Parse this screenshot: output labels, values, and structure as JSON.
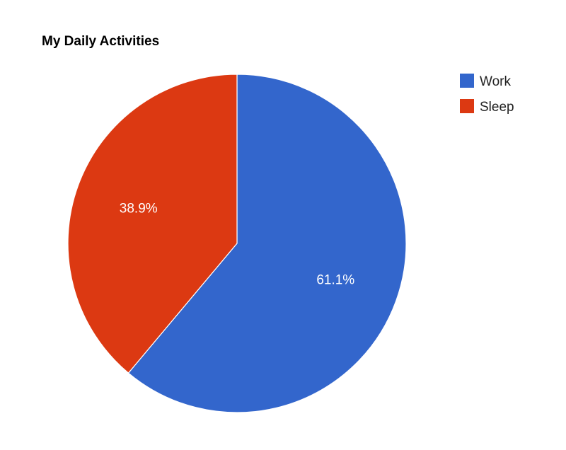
{
  "chart_data": {
    "type": "pie",
    "title": "My Daily Activities",
    "categories": [
      "Work",
      "Sleep"
    ],
    "values": [
      61.1,
      38.9
    ],
    "value_labels": [
      "61.1%",
      "38.9%"
    ],
    "colors": [
      "#3366cc",
      "#dc3912"
    ],
    "legend_position": "right"
  }
}
